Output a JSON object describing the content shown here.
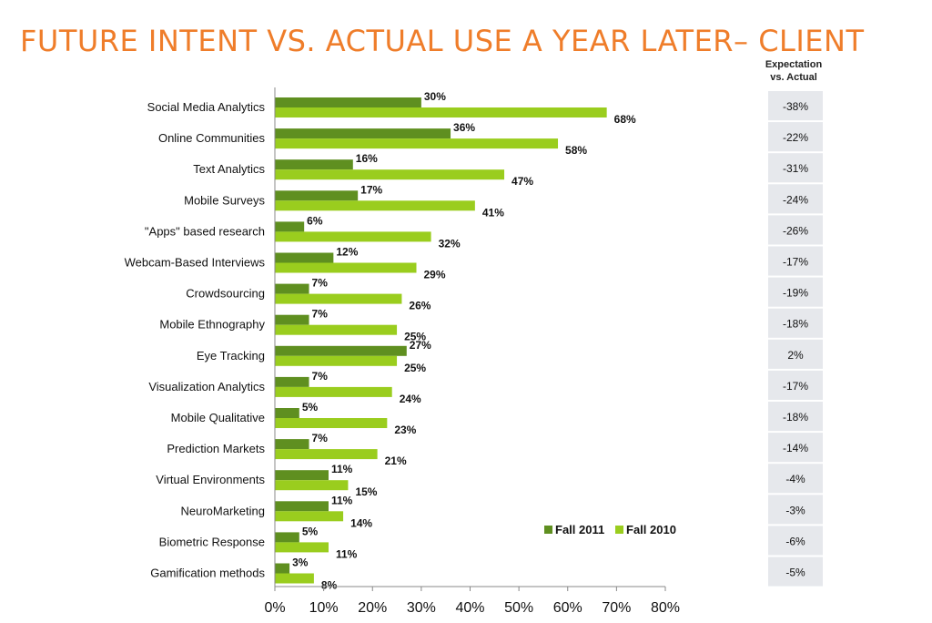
{
  "title": "FUTURE INTENT VS. ACTUAL USE A YEAR LATER– CLIENT",
  "side_header": {
    "line1": "Expectation",
    "line2": "vs. Actual"
  },
  "colors": {
    "fall2011": "#5f8f20",
    "fall2010": "#9acd1e",
    "title": "#ef7d2a",
    "cell": "#e6e8ec"
  },
  "chart_data": {
    "type": "bar",
    "orientation": "horizontal",
    "categories": [
      "Social Media Analytics",
      "Online Communities",
      "Text Analytics",
      "Mobile Surveys",
      "\"Apps\" based research",
      "Webcam-Based Interviews",
      "Crowdsourcing",
      "Mobile Ethnography",
      "Eye Tracking",
      "Visualization Analytics",
      "Mobile Qualitative",
      "Prediction Markets",
      "Virtual Environments",
      "NeuroMarketing",
      "Biometric Response",
      "Gamification methods"
    ],
    "series": [
      {
        "name": "Fall 2011",
        "values": [
          30,
          36,
          16,
          17,
          6,
          12,
          7,
          7,
          27,
          7,
          5,
          7,
          11,
          11,
          5,
          3
        ]
      },
      {
        "name": "Fall 2010",
        "values": [
          68,
          58,
          47,
          41,
          32,
          29,
          26,
          25,
          25,
          24,
          23,
          21,
          15,
          14,
          11,
          8
        ]
      }
    ],
    "expectation_vs_actual": [
      "-38%",
      "-22%",
      "-31%",
      "-24%",
      "-26%",
      "-17%",
      "-19%",
      "-18%",
      "2%",
      "-17%",
      "-18%",
      "-14%",
      "-4%",
      "-3%",
      "-6%",
      "-5%"
    ],
    "xlim": [
      0,
      80
    ],
    "xticks": [
      "0%",
      "10%",
      "20%",
      "30%",
      "40%",
      "50%",
      "60%",
      "70%",
      "80%"
    ],
    "value_suffix": "%",
    "legend_position": "bottom-right"
  }
}
